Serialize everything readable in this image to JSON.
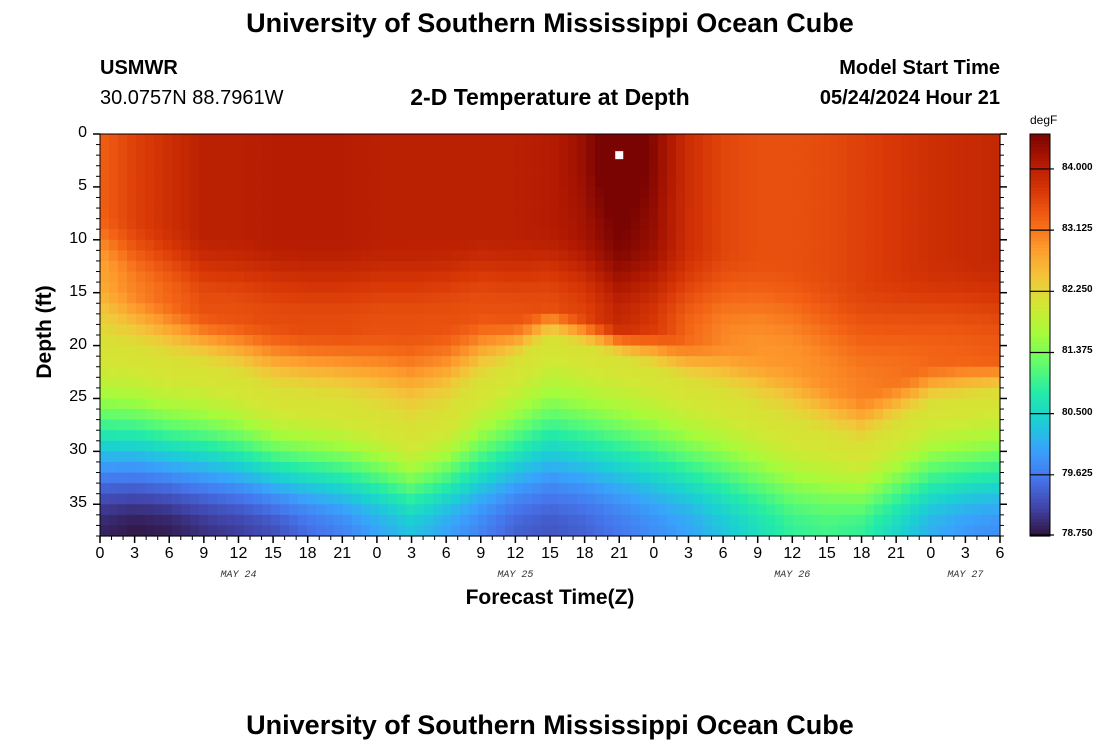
{
  "header": {
    "title": "University of Southern Mississippi Ocean Cube",
    "station": "USMWR",
    "coords": "30.0757N  88.7961W",
    "plot_title": "2-D Temperature at Depth",
    "model_label": "Model Start Time",
    "model_time": "05/24/2024 Hour 21",
    "footer_title": "University of Southern Mississippi Ocean Cube"
  },
  "colors": {
    "colormap": [
      "#30123b",
      "#4145ab",
      "#4675ed",
      "#39a2fc",
      "#1bcfd4",
      "#24eca6",
      "#61fc6c",
      "#a4fc3b",
      "#d1e834",
      "#f3c63a",
      "#fe9b2d",
      "#f36315",
      "#d93806",
      "#b11901",
      "#7a0402"
    ],
    "marker": "#ffffff"
  },
  "chart_data": {
    "type": "heatmap",
    "title": "2-D Temperature at Depth",
    "xlabel": "Forecast Time(Z)",
    "ylabel": "Depth (ft)",
    "x_range_hours_from_may24_00z": [
      0,
      78
    ],
    "y_range_ft": [
      0,
      38
    ],
    "x_tick_labels": [
      "0",
      "3",
      "6",
      "9",
      "12",
      "15",
      "18",
      "21",
      "0",
      "3",
      "6",
      "9",
      "12",
      "15",
      "18",
      "21",
      "0",
      "3",
      "6",
      "9",
      "12",
      "15",
      "18",
      "21",
      "0",
      "3",
      "6"
    ],
    "x_tick_hours": [
      0,
      3,
      6,
      9,
      12,
      15,
      18,
      21,
      24,
      27,
      30,
      33,
      36,
      39,
      42,
      45,
      48,
      51,
      54,
      57,
      60,
      63,
      66,
      69,
      72,
      75,
      78
    ],
    "date_labels": [
      {
        "text": "MAY 24",
        "hour": 12
      },
      {
        "text": "MAY 25",
        "hour": 36
      },
      {
        "text": "MAY 26",
        "hour": 60
      },
      {
        "text": "MAY 27",
        "hour": 75
      }
    ],
    "y_tick_values": [
      0,
      5,
      10,
      15,
      20,
      25,
      30,
      35
    ],
    "colorbar": {
      "unit": "degF",
      "min": 78.75,
      "max": 84.5,
      "tick_values": [
        84.0,
        83.125,
        82.25,
        81.375,
        80.5,
        79.625,
        78.75
      ],
      "tick_labels": [
        "84.000",
        "83.125",
        "82.250",
        "81.375",
        "80.500",
        "79.625",
        "78.750"
      ]
    },
    "marker": {
      "hour": 45,
      "depth_ft": 2
    },
    "profile_hours": [
      0,
      3,
      6,
      9,
      12,
      15,
      18,
      21,
      24,
      27,
      30,
      33,
      36,
      39,
      42,
      45,
      48,
      51,
      54,
      57,
      60,
      63,
      66,
      69,
      72,
      75,
      78
    ],
    "top_temp_degF": [
      83.3,
      83.6,
      83.8,
      84.0,
      84.0,
      84.05,
      84.05,
      84.05,
      84.0,
      84.0,
      84.0,
      84.0,
      84.0,
      84.05,
      84.15,
      84.45,
      84.25,
      83.8,
      83.55,
      83.45,
      83.45,
      83.5,
      83.6,
      83.7,
      83.8,
      83.85,
      83.9
    ],
    "warm_layer_bottom_ft": [
      13,
      14.5,
      15.5,
      16.5,
      17,
      17.5,
      18,
      18,
      18,
      18,
      17.5,
      16.5,
      17,
      16,
      17,
      18,
      18,
      19,
      19.5,
      20.5,
      21.5,
      23.5,
      24.5,
      23,
      21.5,
      21,
      21
    ],
    "mid_depth_ft": [
      20.5,
      21,
      22,
      22.5,
      23.5,
      25,
      25.5,
      26,
      27,
      28.5,
      27,
      24,
      22,
      19.5,
      20.5,
      21.5,
      22.5,
      24,
      25,
      26.5,
      28,
      29,
      30,
      28,
      26,
      25.5,
      25
    ],
    "bottom_temp_degF": [
      78.9,
      78.8,
      78.85,
      79.0,
      79.1,
      79.25,
      79.5,
      79.7,
      80.0,
      80.3,
      80.0,
      79.7,
      79.4,
      79.3,
      79.4,
      79.6,
      79.8,
      80.0,
      80.3,
      80.6,
      80.9,
      81.0,
      80.9,
      80.5,
      80.1,
      79.9,
      79.8
    ]
  }
}
